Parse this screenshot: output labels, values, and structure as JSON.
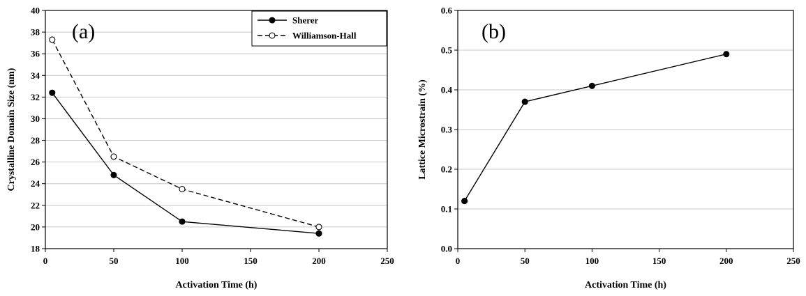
{
  "colors": {
    "line": "#000000",
    "grid": "#c8c8c8",
    "background": "#ffffff"
  },
  "chart_data": [
    {
      "type": "line",
      "panel_label": "(a)",
      "title": "",
      "xlabel": "Activation Time (h)",
      "ylabel": "Crystalline Domain Size (nm)",
      "xlim": [
        0,
        250
      ],
      "ylim": [
        18,
        40
      ],
      "xticks": [
        0,
        50,
        100,
        150,
        200,
        250
      ],
      "yticks": [
        18,
        20,
        22,
        24,
        26,
        28,
        30,
        32,
        34,
        36,
        38,
        40
      ],
      "grid": "horizontal",
      "legend": "top-right",
      "x": [
        5,
        50,
        100,
        200
      ],
      "series": [
        {
          "name": "Sherer",
          "values": [
            32.4,
            24.8,
            20.5,
            19.4
          ],
          "marker": "filled-circle",
          "line": "solid"
        },
        {
          "name": "Williamson-Hall",
          "values": [
            37.3,
            26.5,
            23.5,
            20.0
          ],
          "marker": "open-circle",
          "line": "dashed"
        }
      ]
    },
    {
      "type": "line",
      "panel_label": "(b)",
      "title": "",
      "xlabel": "Activation Time (h)",
      "ylabel": "Lattice Microstrain (%)",
      "xlim": [
        0,
        250
      ],
      "ylim": [
        0.0,
        0.6
      ],
      "xticks": [
        0,
        50,
        100,
        150,
        200,
        250
      ],
      "yticks": [
        0.0,
        0.1,
        0.2,
        0.3,
        0.4,
        0.5,
        0.6
      ],
      "grid": "horizontal",
      "legend": "none",
      "x": [
        5,
        50,
        100,
        200
      ],
      "series": [
        {
          "values": [
            0.12,
            0.37,
            0.41,
            0.49
          ],
          "marker": "filled-circle",
          "line": "solid"
        }
      ]
    }
  ]
}
